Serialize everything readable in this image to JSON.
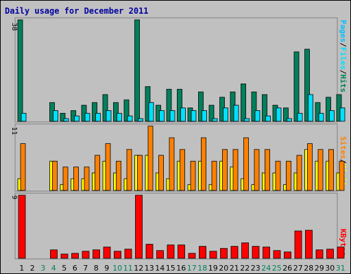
{
  "title": "Daily usage for December 2011",
  "days": [
    "1",
    "2",
    "3",
    "4",
    "5",
    "6",
    "7",
    "8",
    "9",
    "10",
    "11",
    "12",
    "13",
    "14",
    "15",
    "16",
    "17",
    "18",
    "19",
    "20",
    "21",
    "22",
    "23",
    "24",
    "25",
    "26",
    "27",
    "28",
    "29",
    "30",
    "31"
  ],
  "weekend_days": [
    3,
    4,
    10,
    11,
    17,
    18,
    24,
    25,
    31
  ],
  "colors": {
    "title": "#0000a0",
    "hits": "#00805c",
    "files": "#00e0ff",
    "pages": "#00c0ff",
    "visits": "#ffff00",
    "sites": "#ff8000",
    "kbytes": "#ff0000",
    "weekday": "#000000",
    "weekend": "#00805c",
    "panel_bg": "#c0c0c0"
  },
  "legend": {
    "top": {
      "pages": "Pages",
      "files": "Files",
      "hits": "Hits",
      "sep": "/"
    },
    "middle": {
      "sites": "Sites",
      "visits": "Visits",
      "sep": "/"
    },
    "bottom": {
      "kbytes": "KBytes"
    }
  },
  "chart_data": [
    {
      "type": "bar",
      "categories": [
        "1",
        "2",
        "3",
        "4",
        "5",
        "6",
        "7",
        "8",
        "9",
        "10",
        "11",
        "12",
        "13",
        "14",
        "15",
        "16",
        "17",
        "18",
        "19",
        "20",
        "21",
        "22",
        "23",
        "24",
        "25",
        "26",
        "27",
        "28",
        "29",
        "30",
        "31"
      ],
      "ymax_label": "38",
      "ylim": [
        0,
        38
      ],
      "series": [
        {
          "name": "Hits",
          "values": [
            38,
            0,
            0,
            7,
            3,
            4,
            6,
            7,
            10,
            7,
            8,
            38,
            13,
            6,
            12,
            12,
            5,
            11,
            6,
            9,
            11,
            14,
            11,
            10,
            6,
            5,
            26,
            27,
            7,
            9,
            10
          ]
        },
        {
          "name": "Files",
          "values": [
            3,
            0,
            0,
            4,
            1,
            2,
            3,
            3,
            4,
            3,
            2,
            1,
            7,
            4,
            4,
            5,
            4,
            4,
            1,
            5,
            6,
            1,
            4,
            2,
            5,
            1,
            3,
            10,
            3,
            4,
            5
          ]
        },
        {
          "name": "Pages",
          "values": [
            3,
            0,
            0,
            4,
            1,
            2,
            3,
            3,
            4,
            3,
            2,
            1,
            7,
            4,
            4,
            5,
            4,
            4,
            1,
            5,
            6,
            1,
            4,
            2,
            5,
            1,
            3,
            10,
            3,
            4,
            5
          ]
        }
      ]
    },
    {
      "type": "bar",
      "categories": [
        "1",
        "2",
        "3",
        "4",
        "5",
        "6",
        "7",
        "8",
        "9",
        "10",
        "11",
        "12",
        "13",
        "14",
        "15",
        "16",
        "17",
        "18",
        "19",
        "20",
        "21",
        "22",
        "23",
        "24",
        "25",
        "26",
        "27",
        "28",
        "29",
        "30",
        "31"
      ],
      "ymax_label": "11",
      "ylim": [
        0,
        11
      ],
      "series": [
        {
          "name": "Visits",
          "values": [
            2,
            0,
            0,
            5,
            1,
            2,
            2,
            3,
            5,
            3,
            2,
            6,
            6,
            3,
            2,
            5,
            1,
            5,
            1,
            5,
            4,
            2,
            1,
            3,
            3,
            1,
            3,
            7,
            5,
            5,
            3
          ]
        },
        {
          "name": "Sites",
          "values": [
            8,
            0,
            0,
            5,
            4,
            4,
            4,
            6,
            8,
            5,
            7,
            6,
            11,
            6,
            9,
            7,
            5,
            9,
            5,
            7,
            7,
            9,
            7,
            7,
            5,
            5,
            6,
            8,
            7,
            7,
            5
          ]
        }
      ]
    },
    {
      "type": "bar",
      "categories": [
        "1",
        "2",
        "3",
        "4",
        "5",
        "6",
        "7",
        "8",
        "9",
        "10",
        "11",
        "12",
        "13",
        "14",
        "15",
        "16",
        "17",
        "18",
        "19",
        "20",
        "21",
        "22",
        "23",
        "24",
        "25",
        "26",
        "27",
        "28",
        "29",
        "30",
        "31"
      ],
      "ymax_label": "9",
      "ylim": [
        0,
        9
      ],
      "series": [
        {
          "name": "KBytes",
          "values": [
            9,
            0,
            0,
            1.2,
            0.6,
            0.7,
            1.0,
            1.2,
            1.6,
            1.0,
            1.3,
            9,
            2.0,
            1.1,
            1.9,
            1.9,
            0.7,
            1.7,
            1.0,
            1.4,
            1.7,
            2.2,
            1.7,
            1.6,
            1.1,
            0.9,
            3.9,
            4.0,
            1.2,
            1.3,
            1.6
          ]
        }
      ]
    }
  ]
}
